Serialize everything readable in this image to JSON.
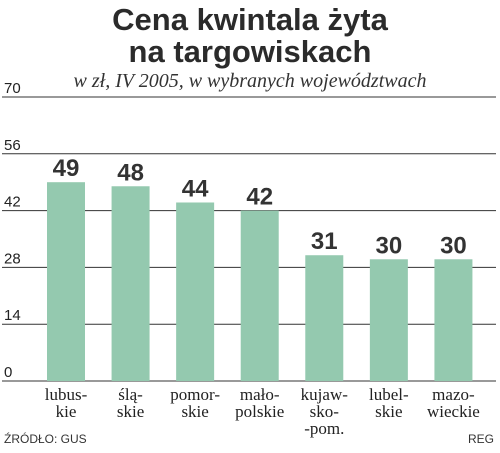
{
  "title_line1": "Cena kwintala żyta",
  "title_line2": "na targowiskach",
  "subtitle": "w zł, IV 2005, w wybranych województwach",
  "source": "ŹRÓDŁO: GUS",
  "author": "REG",
  "colors": {
    "bar": "#94c9af",
    "grid": "#333333",
    "text": "#222222"
  },
  "chart_data": {
    "type": "bar",
    "categories": [
      [
        "lubus-",
        "kie"
      ],
      [
        "ślą-",
        "skie"
      ],
      [
        "pomor-",
        "skie"
      ],
      [
        "mało-",
        "polskie"
      ],
      [
        "kujaw-",
        "sko-",
        "-pom."
      ],
      [
        "lubel-",
        "skie"
      ],
      [
        "mazo-",
        "wieckie"
      ]
    ],
    "values": [
      49,
      48,
      44,
      42,
      31,
      30,
      30
    ],
    "value_labels": [
      "49",
      "48",
      "44",
      "42",
      "31",
      "30",
      "30"
    ],
    "yticks": [
      0,
      14,
      28,
      42,
      56,
      70
    ],
    "ylim": [
      0,
      70
    ],
    "grid": true
  }
}
